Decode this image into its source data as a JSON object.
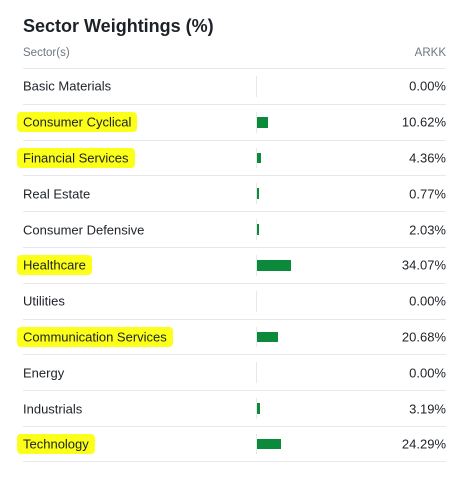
{
  "widget": {
    "title": "Sector Weightings (%)",
    "col_sector": "Sector(s)",
    "col_fund": "ARKK"
  },
  "colors": {
    "bar": "#0a8a3a",
    "highlight": "#fbff19"
  },
  "sectors": [
    {
      "label": "Basic Materials",
      "value": "0.00%",
      "weight": 0.0,
      "highlighted": false
    },
    {
      "label": "Consumer Cyclical",
      "value": "10.62%",
      "weight": 10.62,
      "highlighted": true
    },
    {
      "label": "Financial Services",
      "value": "4.36%",
      "weight": 4.36,
      "highlighted": true
    },
    {
      "label": "Real Estate",
      "value": "0.77%",
      "weight": 0.77,
      "highlighted": false
    },
    {
      "label": "Consumer Defensive",
      "value": "2.03%",
      "weight": 2.03,
      "highlighted": false
    },
    {
      "label": "Healthcare",
      "value": "34.07%",
      "weight": 34.07,
      "highlighted": true
    },
    {
      "label": "Utilities",
      "value": "0.00%",
      "weight": 0.0,
      "highlighted": false
    },
    {
      "label": "Communication Services",
      "value": "20.68%",
      "weight": 20.68,
      "highlighted": true
    },
    {
      "label": "Energy",
      "value": "0.00%",
      "weight": 0.0,
      "highlighted": false
    },
    {
      "label": "Industrials",
      "value": "3.19%",
      "weight": 3.19,
      "highlighted": false
    },
    {
      "label": "Technology",
      "value": "24.29%",
      "weight": 24.29,
      "highlighted": true
    }
  ]
}
